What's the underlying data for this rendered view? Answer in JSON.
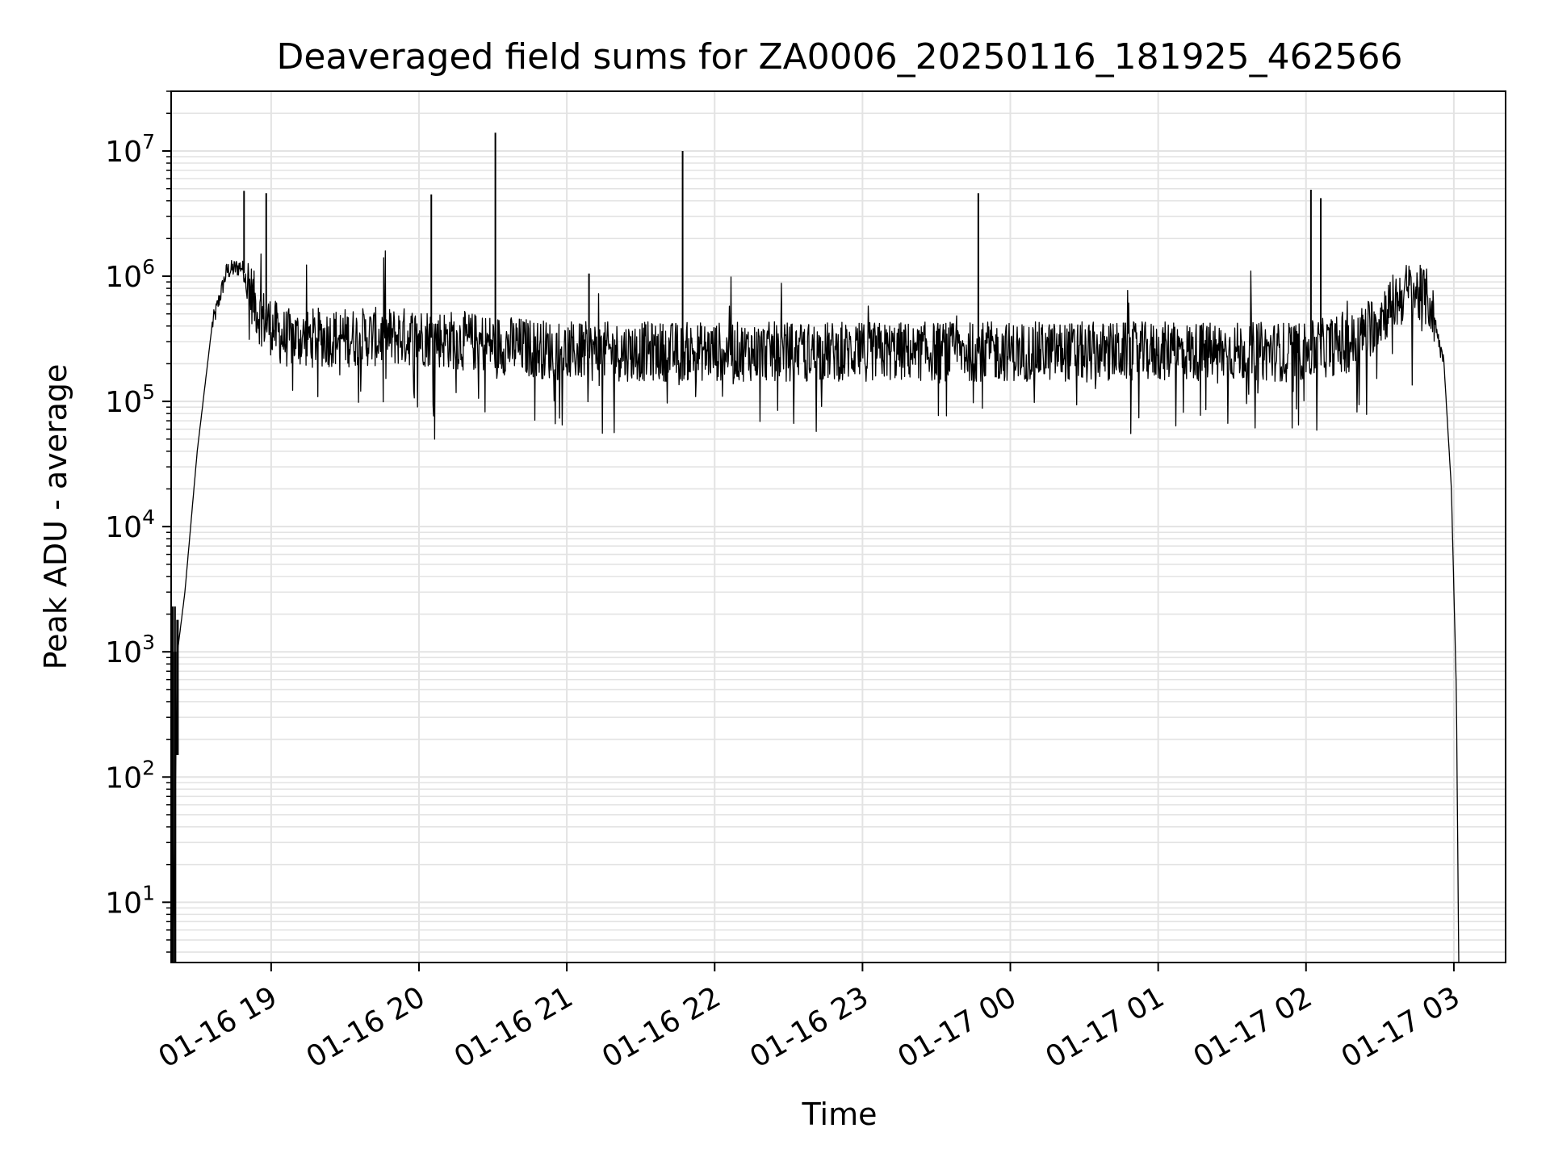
{
  "chart_data": {
    "type": "line",
    "title": "Deaveraged field sums for ZA0006_20250116_181925_462566",
    "xlabel": "Time",
    "ylabel": "Peak ADU - average",
    "yscale": "log",
    "ylim": [
      3.3,
      30000000
    ],
    "xlim": [
      "01-16 18:19:25",
      "01-17 03:21:00"
    ],
    "grid": "on (major and minor)",
    "line_color": "#000000",
    "x_ticks": [
      "01-16 19",
      "01-16 20",
      "01-16 21",
      "01-16 22",
      "01-16 23",
      "01-17 00",
      "01-17 01",
      "01-17 02",
      "01-17 03"
    ],
    "y_ticks": [
      {
        "base": "10",
        "exp": "1"
      },
      {
        "base": "10",
        "exp": "2"
      },
      {
        "base": "10",
        "exp": "3"
      },
      {
        "base": "10",
        "exp": "4"
      },
      {
        "base": "10",
        "exp": "5"
      },
      {
        "base": "10",
        "exp": "6"
      },
      {
        "base": "10",
        "exp": "7"
      }
    ],
    "baseline": [
      {
        "x": "01-16 18:20",
        "y": 3.3
      },
      {
        "x": "01-16 18:22",
        "y": 1000
      },
      {
        "x": "01-16 18:25",
        "y": 3000
      },
      {
        "x": "01-16 18:30",
        "y": 40000
      },
      {
        "x": "01-16 18:36",
        "y": 400000
      },
      {
        "x": "01-16 18:42",
        "y": 1100000
      },
      {
        "x": "01-16 18:48",
        "y": 1200000
      },
      {
        "x": "01-16 18:55",
        "y": 500000
      },
      {
        "x": "01-16 19:05",
        "y": 320000
      },
      {
        "x": "01-16 20:00",
        "y": 330000
      },
      {
        "x": "01-16 21:00",
        "y": 250000
      },
      {
        "x": "01-17 00:00",
        "y": 250000
      },
      {
        "x": "01-17 02:00",
        "y": 250000
      },
      {
        "x": "01-17 02:20",
        "y": 300000
      },
      {
        "x": "01-17 02:35",
        "y": 600000
      },
      {
        "x": "01-17 02:42",
        "y": 780000
      },
      {
        "x": "01-17 02:50",
        "y": 650000
      },
      {
        "x": "01-17 02:56",
        "y": 200000
      },
      {
        "x": "01-17 02:59",
        "y": 20000
      },
      {
        "x": "01-17 03:01",
        "y": 500
      },
      {
        "x": "01-17 03:02",
        "y": 3.3
      }
    ],
    "spikes": [
      {
        "x": "01-16 18:21",
        "y": 2300
      },
      {
        "x": "01-16 18:49",
        "y": 4800000
      },
      {
        "x": "01-16 18:58",
        "y": 4600000
      },
      {
        "x": "01-16 20:05",
        "y": 4500000
      },
      {
        "x": "01-16 20:31",
        "y": 14000000
      },
      {
        "x": "01-16 21:09",
        "y": 1050000
      },
      {
        "x": "01-16 21:47",
        "y": 10000000
      },
      {
        "x": "01-16 23:47",
        "y": 4600000
      },
      {
        "x": "01-17 02:02",
        "y": 4900000
      },
      {
        "x": "01-17 02:06",
        "y": 4200000
      }
    ],
    "noise_band": {
      "low": 100000,
      "high": 550000,
      "min_dip": 35000
    }
  }
}
